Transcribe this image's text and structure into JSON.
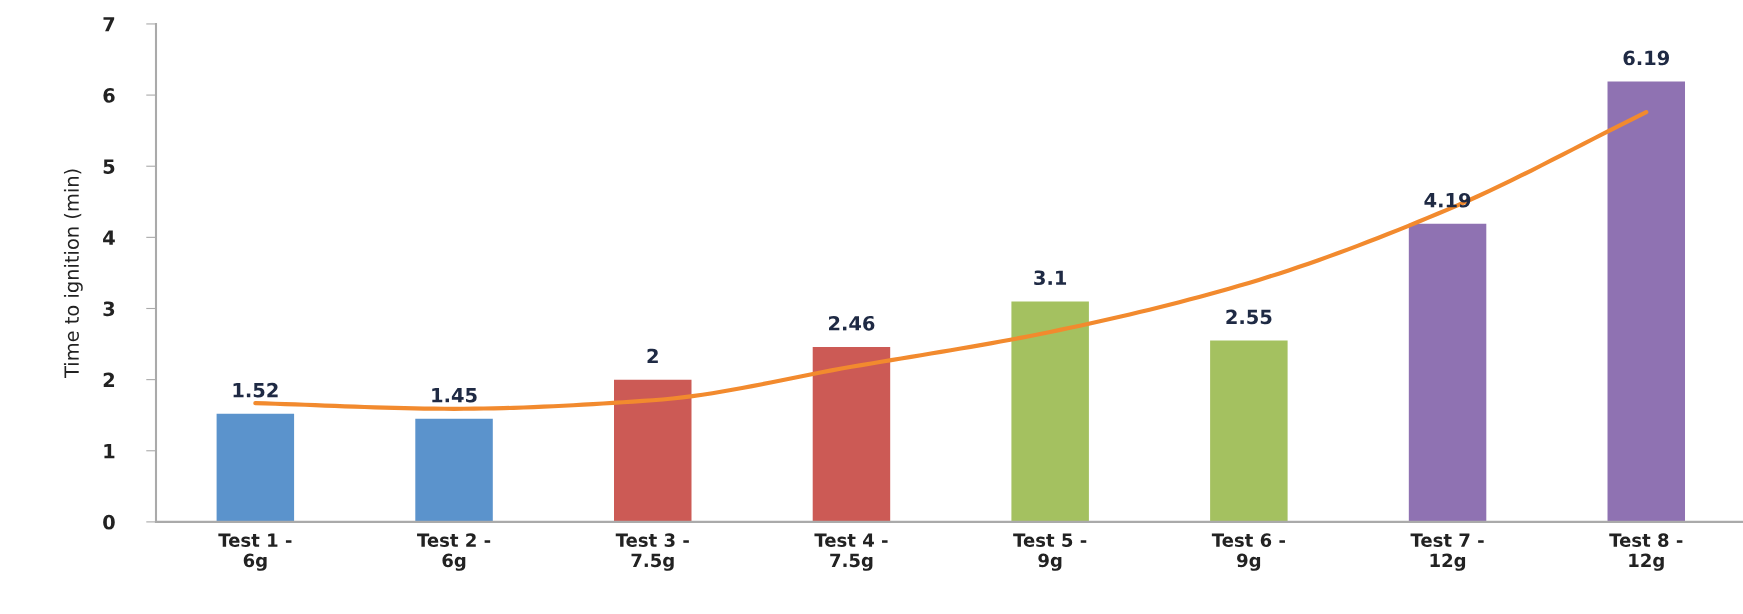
{
  "chart_data": {
    "type": "bar",
    "categories": [
      "Test 1 -\n6g",
      "Test 2 -\n6g",
      "Test 3 -\n7.5g",
      "Test 4 -\n7.5g",
      "Test 5 -\n9g",
      "Test 6 -\n9g",
      "Test 7 -\n12g",
      "Test 8 -\n12g"
    ],
    "series": [
      {
        "values": [
          1.52,
          1.45,
          2,
          2.46,
          3.1,
          2.55,
          4.19,
          6.19
        ],
        "colors": [
          "#5b93cc",
          "#5b93cc",
          "#cc5a55",
          "#cc5a55",
          "#a4c160",
          "#a4c160",
          "#8f72b2",
          "#8f72b2"
        ],
        "value_labels": [
          "1.52",
          "1.45",
          "2",
          "2.46",
          "3.1",
          "2.55",
          "4.19",
          "6.19"
        ]
      },
      {
        "type": "line",
        "values": [
          1.67,
          1.59,
          1.71,
          2.18,
          2.67,
          3.36,
          4.39,
          5.76
        ],
        "color": "#f28a2e"
      }
    ],
    "ylabel": "Time to ignition (min)",
    "ylim": [
      0,
      7
    ],
    "yticks": [
      0,
      1,
      2,
      3,
      4,
      5,
      6,
      7
    ]
  }
}
